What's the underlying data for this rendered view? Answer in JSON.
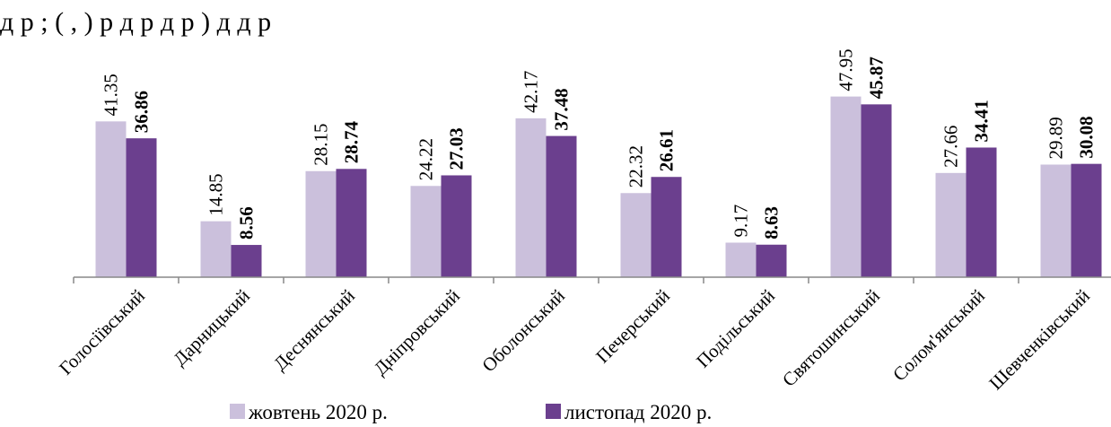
{
  "header_text": "д р ; ( , ) р д р д р ) д д р",
  "chart_data": {
    "type": "bar",
    "categories": [
      "Голосіївський",
      "Дарницький",
      "Деснянський",
      "Дніпровський",
      "Оболонський",
      "Печерський",
      "Подільський",
      "Святошинський",
      "Солом'янський",
      "Шевченківський"
    ],
    "series": [
      {
        "name": "жовтень 2020 р.",
        "values": [
          41.35,
          14.85,
          28.15,
          24.22,
          42.17,
          22.32,
          9.17,
          47.95,
          27.66,
          29.89
        ]
      },
      {
        "name": "листопад 2020 р.",
        "values": [
          36.86,
          8.56,
          28.74,
          27.03,
          37.48,
          26.61,
          8.63,
          45.87,
          34.41,
          30.08
        ]
      }
    ],
    "value_labels": [
      [
        "41.35",
        "14.85",
        "28.15",
        "24.22",
        "42.17",
        "22.32",
        "9.17",
        "47.95",
        "27.66",
        "29.89"
      ],
      [
        "36.86",
        "8.56",
        "28.74",
        "27.03",
        "37.48",
        "26.61",
        "8.63",
        "45.87",
        "34.41",
        "30.08"
      ]
    ],
    "ylim": [
      0,
      50
    ],
    "grid": false,
    "legend_position": "bottom",
    "colors": [
      "#cbc0dc",
      "#6b3f8e"
    ]
  }
}
